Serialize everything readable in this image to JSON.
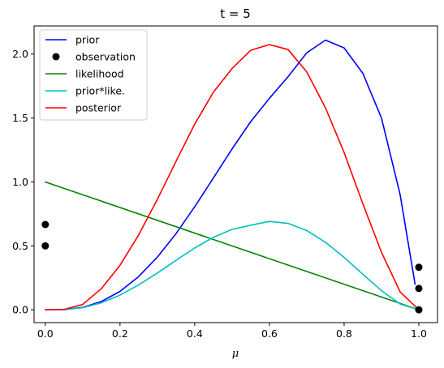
{
  "chart_data": {
    "type": "line",
    "title": "t = 5",
    "xlabel": "μ",
    "ylabel": "",
    "xlim": [
      -0.03,
      1.05
    ],
    "ylim": [
      -0.1,
      2.22
    ],
    "xticks": [
      0.0,
      0.2,
      0.4,
      0.6,
      0.8,
      1.0
    ],
    "xtick_labels": [
      "0.0",
      "0.2",
      "0.4",
      "0.6",
      "0.8",
      "1.0"
    ],
    "yticks": [
      0.0,
      0.5,
      1.0,
      1.5,
      2.0
    ],
    "ytick_labels": [
      "0.0",
      "0.5",
      "1.0",
      "1.5",
      "2.0"
    ],
    "grid": false,
    "legend_position": "top-left",
    "series": [
      {
        "name": "prior",
        "kind": "line",
        "color": "#0000ff",
        "x": [
          0.0,
          0.05,
          0.1,
          0.15,
          0.2,
          0.25,
          0.3,
          0.35,
          0.4,
          0.45,
          0.5,
          0.55,
          0.6,
          0.65,
          0.7,
          0.75,
          0.8,
          0.85,
          0.9,
          0.95,
          0.99
        ],
        "y": [
          0.0,
          0.001,
          0.019,
          0.065,
          0.144,
          0.26,
          0.412,
          0.596,
          0.806,
          1.031,
          1.258,
          1.472,
          1.654,
          1.823,
          2.01,
          2.109,
          2.048,
          1.85,
          1.5,
          0.9,
          0.2
        ]
      },
      {
        "name": "observation",
        "kind": "scatter",
        "color": "#000000",
        "x": [
          0.0,
          0.0,
          1.0,
          1.0,
          1.0
        ],
        "y": [
          0.667,
          0.5,
          0.333,
          0.167,
          0.0
        ]
      },
      {
        "name": "likelihood",
        "kind": "line",
        "color": "#008000",
        "x": [
          0.0,
          1.0
        ],
        "y": [
          1.0,
          0.0
        ]
      },
      {
        "name": "prior*like.",
        "kind": "line",
        "color": "#00bfbf",
        "x": [
          0.0,
          0.05,
          0.1,
          0.15,
          0.2,
          0.25,
          0.3,
          0.35,
          0.4,
          0.45,
          0.5,
          0.55,
          0.6,
          0.65,
          0.7,
          0.75,
          0.8,
          0.85,
          0.9,
          0.95,
          1.0
        ],
        "y": [
          0.0,
          0.001,
          0.017,
          0.055,
          0.115,
          0.195,
          0.288,
          0.387,
          0.484,
          0.567,
          0.629,
          0.662,
          0.691,
          0.676,
          0.62,
          0.528,
          0.41,
          0.278,
          0.15,
          0.045,
          0.0
        ]
      },
      {
        "name": "posterior",
        "kind": "line",
        "color": "#ff0000",
        "x": [
          0.0,
          0.05,
          0.1,
          0.15,
          0.2,
          0.25,
          0.3,
          0.35,
          0.4,
          0.45,
          0.5,
          0.55,
          0.6,
          0.65,
          0.7,
          0.75,
          0.8,
          0.85,
          0.9,
          0.95,
          1.0
        ],
        "y": [
          0.0,
          0.003,
          0.042,
          0.165,
          0.348,
          0.586,
          0.864,
          1.161,
          1.452,
          1.702,
          1.887,
          2.03,
          2.074,
          2.035,
          1.86,
          1.58,
          1.23,
          0.83,
          0.45,
          0.14,
          0.0
        ]
      }
    ]
  }
}
